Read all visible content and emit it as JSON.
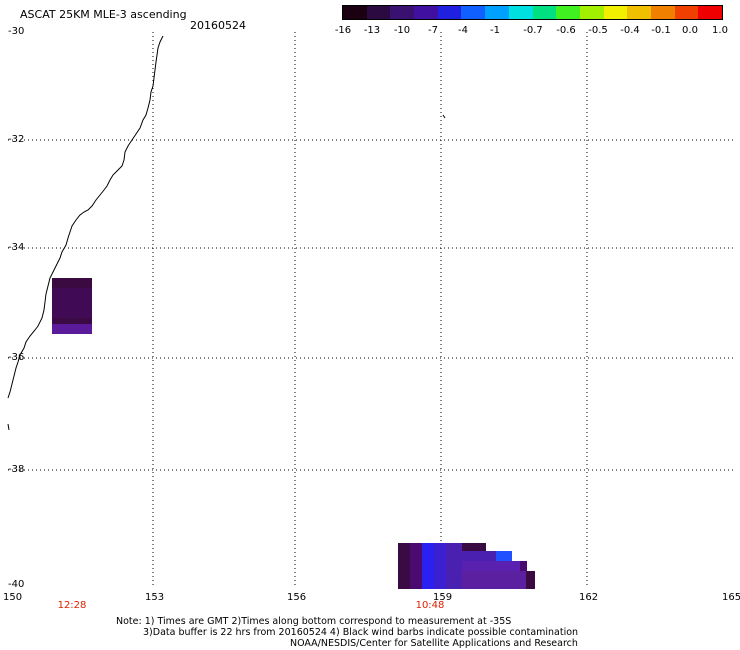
{
  "header": {
    "title": "ASCAT 25KM MLE-3 ascending",
    "date": "20160524"
  },
  "colorbar": {
    "labels": [
      "-16",
      "-13",
      "-10",
      "-7",
      "-4",
      "-1",
      "-0.7",
      "-0.6",
      "-0.5",
      "-0.4",
      "-0.1",
      "0.0",
      "1.0"
    ],
    "colors": [
      "#1a0010",
      "#2a0a40",
      "#3a1070",
      "#4010a0",
      "#2020e0",
      "#1060ff",
      "#00a0ff",
      "#00e0e0",
      "#00e080",
      "#40f020",
      "#a0f000",
      "#f0f000",
      "#f0c000",
      "#f08000",
      "#f04000",
      "#f00000"
    ]
  },
  "axes": {
    "y_labels": [
      "-30",
      "-32",
      "-34",
      "-36",
      "-38",
      "-40"
    ],
    "x_labels": [
      "150",
      "153",
      "156",
      "159",
      "162",
      "165"
    ]
  },
  "times": [
    "12:28",
    "10:48"
  ],
  "notes": {
    "line1": "Note: 1) Times are GMT 2)Times along bottom correspond to measurement at -35S",
    "line2": "3)Data buffer is 22 hrs from 20160524 4) Black wind barbs indicate possible contamination",
    "line3": "NOAA/NESDIS/Center for Satellite Applications and Research"
  }
}
